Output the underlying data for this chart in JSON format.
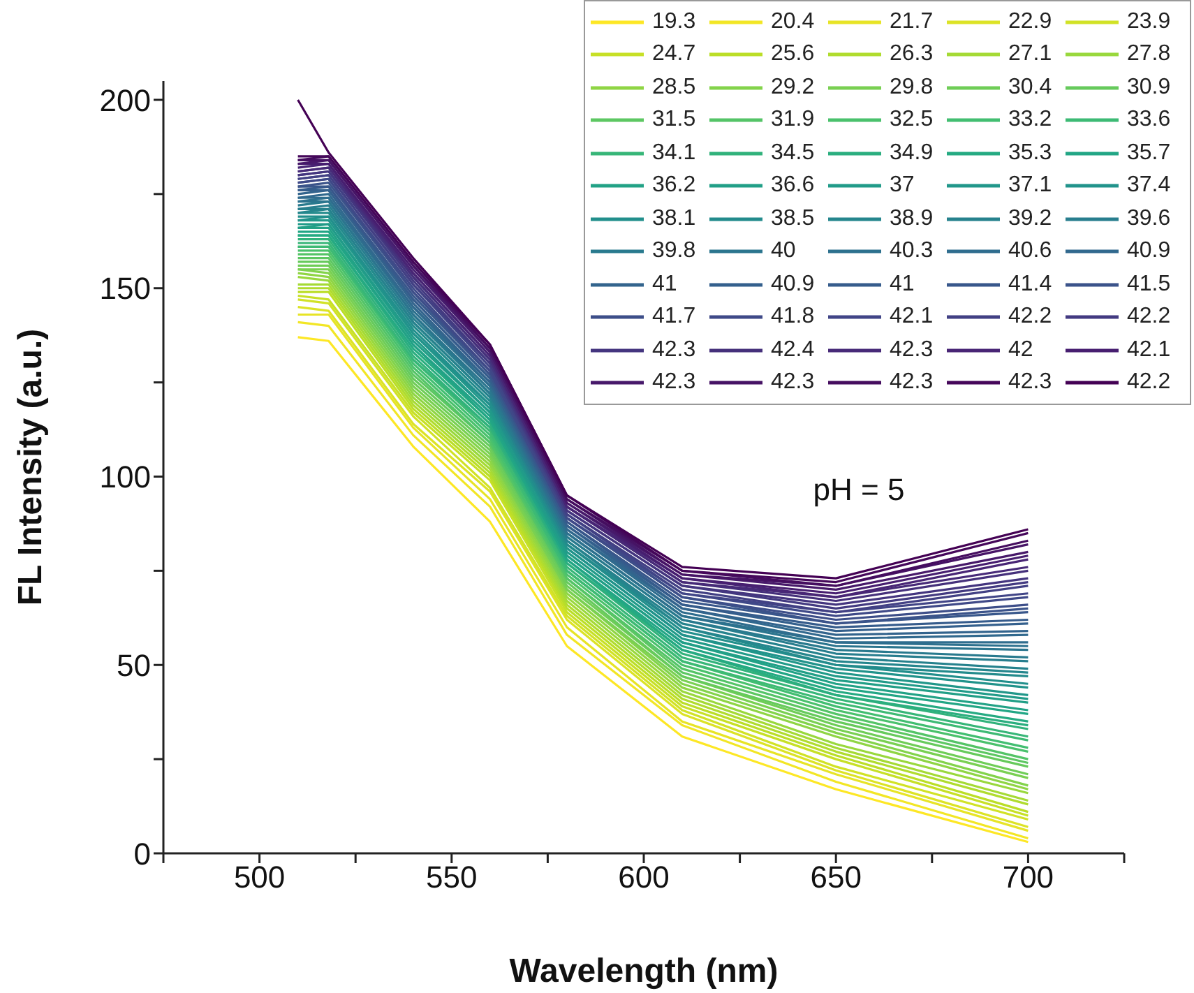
{
  "chart_data": {
    "type": "line",
    "xlabel": "Wavelength (nm)",
    "ylabel": "FL Intensity (a.u.)",
    "annotations": [
      "pH = 5"
    ],
    "x": [
      510,
      518,
      540,
      560,
      580,
      610,
      650,
      700
    ],
    "xlim": [
      475,
      725
    ],
    "xticks": [
      {
        "value": 475,
        "label": null
      },
      500,
      {
        "value": 525,
        "label": null
      },
      550,
      {
        "value": 575,
        "label": null
      },
      600,
      {
        "value": 625,
        "label": null
      },
      650,
      {
        "value": 675,
        "label": null
      },
      700,
      {
        "value": 725,
        "label": null
      }
    ],
    "ylim": [
      0,
      205
    ],
    "yticks": [
      0,
      {
        "value": 25,
        "label": null
      },
      50,
      {
        "value": 75,
        "label": null
      },
      100,
      {
        "value": 125,
        "label": null
      },
      150,
      {
        "value": 175,
        "label": null
      },
      200
    ],
    "legend": "top right",
    "marker": "none",
    "line_style": "solid",
    "series": [
      {
        "name": "19.3",
        "color": "#fde725",
        "values": [
          137,
          136,
          108,
          88,
          55,
          31,
          17,
          3
        ]
      },
      {
        "name": "20.4",
        "color": "#f2e625",
        "values": [
          141,
          140,
          111,
          92,
          58,
          34,
          19,
          4
        ]
      },
      {
        "name": "21.7",
        "color": "#e7e426",
        "values": [
          143,
          143,
          113,
          94,
          60,
          35,
          21,
          6
        ]
      },
      {
        "name": "22.9",
        "color": "#dce326",
        "values": [
          145,
          144,
          114,
          96,
          62,
          37,
          22,
          7
        ]
      },
      {
        "name": "23.9",
        "color": "#d1e226",
        "values": [
          147,
          146,
          116,
          97,
          63,
          38,
          23,
          9
        ]
      },
      {
        "name": "24.7",
        "color": "#c7e026",
        "values": [
          148,
          147,
          117,
          99,
          64,
          39,
          25,
          10
        ]
      },
      {
        "name": "25.6",
        "color": "#bbde27",
        "values": [
          149,
          149,
          118,
          100,
          65,
          40,
          26,
          11
        ]
      },
      {
        "name": "26.3",
        "color": "#b0dc2e",
        "values": [
          150,
          150,
          119,
          101,
          66,
          41,
          27,
          13
        ]
      },
      {
        "name": "27.1",
        "color": "#a5da35",
        "values": [
          151,
          151,
          120,
          102,
          67,
          42,
          28,
          14
        ]
      },
      {
        "name": "27.8",
        "color": "#99d83d",
        "values": [
          153,
          152,
          121,
          103,
          68,
          43,
          29,
          16
        ]
      },
      {
        "name": "28.5",
        "color": "#8fd544",
        "values": [
          154,
          153,
          122,
          104,
          69,
          44,
          31,
          17
        ]
      },
      {
        "name": "29.2",
        "color": "#83d34b",
        "values": [
          155,
          154,
          123,
          105,
          70,
          45,
          32,
          18
        ]
      },
      {
        "name": "29.8",
        "color": "#79d052",
        "values": [
          155,
          155,
          124,
          106,
          70,
          46,
          33,
          20
        ]
      },
      {
        "name": "30.4",
        "color": "#6fcd57",
        "values": [
          156,
          156,
          125,
          107,
          71,
          47,
          34,
          21
        ]
      },
      {
        "name": "30.9",
        "color": "#66ca5c",
        "values": [
          157,
          157,
          126,
          108,
          72,
          47,
          35,
          23
        ]
      },
      {
        "name": "31.5",
        "color": "#5dc762",
        "values": [
          158,
          158,
          127,
          109,
          73,
          48,
          36,
          24
        ]
      },
      {
        "name": "31.9",
        "color": "#54c467",
        "values": [
          159,
          159,
          128,
          109,
          73,
          49,
          37,
          25
        ]
      },
      {
        "name": "32.5",
        "color": "#4ac16c",
        "values": [
          160,
          160,
          129,
          110,
          74,
          50,
          38,
          27
        ]
      },
      {
        "name": "33.2",
        "color": "#42be71",
        "values": [
          161,
          161,
          130,
          111,
          75,
          51,
          39,
          28
        ]
      },
      {
        "name": "33.6",
        "color": "#3dba74",
        "values": [
          161,
          161,
          131,
          112,
          75,
          51,
          40,
          30
        ]
      },
      {
        "name": "34.1",
        "color": "#37b678",
        "values": [
          162,
          162,
          131,
          113,
          76,
          52,
          41,
          31
        ]
      },
      {
        "name": "34.5",
        "color": "#31b27b",
        "values": [
          163,
          163,
          132,
          113,
          77,
          53,
          42,
          33
        ]
      },
      {
        "name": "34.9",
        "color": "#2bae7f",
        "values": [
          164,
          164,
          133,
          114,
          77,
          54,
          42,
          34
        ]
      },
      {
        "name": "35.3",
        "color": "#25aa82",
        "values": [
          164,
          164,
          134,
          115,
          78,
          54,
          43,
          35
        ]
      },
      {
        "name": "35.7",
        "color": "#22a685",
        "values": [
          165,
          165,
          135,
          115,
          78,
          55,
          44,
          37
        ]
      },
      {
        "name": "36.2",
        "color": "#22a286",
        "values": [
          166,
          166,
          135,
          116,
          79,
          56,
          45,
          38
        ]
      },
      {
        "name": "36.6",
        "color": "#219f87",
        "values": [
          166,
          167,
          136,
          117,
          79,
          56,
          46,
          40
        ]
      },
      {
        "name": "37",
        "color": "#219b89",
        "values": [
          167,
          167,
          137,
          117,
          80,
          57,
          47,
          41
        ]
      },
      {
        "name": "37.1",
        "color": "#21978a",
        "values": [
          168,
          168,
          138,
          118,
          81,
          58,
          48,
          42
        ]
      },
      {
        "name": "37.4",
        "color": "#21938b",
        "values": [
          168,
          169,
          138,
          119,
          81,
          58,
          49,
          44
        ]
      },
      {
        "name": "38.1",
        "color": "#228f8c",
        "values": [
          169,
          169,
          139,
          119,
          82,
          59,
          50,
          45
        ]
      },
      {
        "name": "38.5",
        "color": "#238b8c",
        "values": [
          170,
          170,
          140,
          120,
          82,
          60,
          50,
          47
        ]
      },
      {
        "name": "38.9",
        "color": "#25868d",
        "values": [
          170,
          171,
          141,
          121,
          83,
          60,
          51,
          48
        ]
      },
      {
        "name": "39.2",
        "color": "#26828d",
        "values": [
          171,
          171,
          141,
          121,
          83,
          61,
          52,
          49
        ]
      },
      {
        "name": "39.6",
        "color": "#287e8e",
        "values": [
          171,
          172,
          142,
          122,
          84,
          62,
          53,
          51
        ]
      },
      {
        "name": "39.8",
        "color": "#297a8e",
        "values": [
          172,
          173,
          143,
          122,
          84,
          62,
          54,
          52
        ]
      },
      {
        "name": "40",
        "color": "#2b758e",
        "values": [
          173,
          173,
          143,
          123,
          85,
          63,
          55,
          54
        ]
      },
      {
        "name": "40.3",
        "color": "#2d718e",
        "values": [
          173,
          174,
          144,
          124,
          85,
          63,
          56,
          55
        ]
      },
      {
        "name": "40.6",
        "color": "#2f6d8e",
        "values": [
          174,
          174,
          145,
          124,
          86,
          64,
          56,
          56
        ]
      },
      {
        "name": "40.9",
        "color": "#31698e",
        "values": [
          174,
          175,
          145,
          125,
          86,
          65,
          57,
          58
        ]
      },
      {
        "name": "41",
        "color": "#33648d",
        "values": [
          175,
          176,
          146,
          125,
          87,
          65,
          58,
          59
        ]
      },
      {
        "name": "40.9",
        "color": "#34608d",
        "values": [
          176,
          176,
          147,
          126,
          87,
          66,
          59,
          61
        ]
      },
      {
        "name": "41",
        "color": "#365c8c",
        "values": [
          176,
          177,
          147,
          126,
          88,
          66,
          60,
          62
        ]
      },
      {
        "name": "41.4",
        "color": "#38578b",
        "values": [
          177,
          177,
          148,
          127,
          88,
          67,
          61,
          64
        ]
      },
      {
        "name": "41.5",
        "color": "#3b538a",
        "values": [
          177,
          178,
          149,
          127,
          89,
          68,
          61,
          65
        ]
      },
      {
        "name": "41.7",
        "color": "#3d4e89",
        "values": [
          178,
          179,
          149,
          128,
          89,
          68,
          62,
          66
        ]
      },
      {
        "name": "41.8",
        "color": "#3f4988",
        "values": [
          178,
          179,
          150,
          128,
          89,
          69,
          63,
          68
        ]
      },
      {
        "name": "42.1",
        "color": "#414587",
        "values": [
          179,
          180,
          151,
          129,
          90,
          69,
          64,
          69
        ]
      },
      {
        "name": "42.2",
        "color": "#424084",
        "values": [
          179,
          180,
          151,
          130,
          90,
          70,
          64,
          71
        ]
      },
      {
        "name": "42.2",
        "color": "#433a81",
        "values": [
          180,
          181,
          152,
          130,
          91,
          71,
          65,
          72
        ]
      },
      {
        "name": "42.3",
        "color": "#44357f",
        "values": [
          180,
          181,
          153,
          131,
          91,
          71,
          66,
          73
        ]
      },
      {
        "name": "42.4",
        "color": "#45307b",
        "values": [
          181,
          182,
          153,
          131,
          92,
          72,
          67,
          75
        ]
      },
      {
        "name": "42.3",
        "color": "#472a78",
        "values": [
          181,
          182,
          154,
          132,
          92,
          72,
          68,
          76
        ]
      },
      {
        "name": "42",
        "color": "#482575",
        "values": [
          182,
          183,
          154,
          132,
          92,
          73,
          68,
          78
        ]
      },
      {
        "name": "42.1",
        "color": "#471e70",
        "values": [
          183,
          183,
          155,
          133,
          93,
          73,
          69,
          79
        ]
      },
      {
        "name": "42.3",
        "color": "#47196a",
        "values": [
          183,
          184,
          156,
          133,
          93,
          74,
          70,
          80
        ]
      },
      {
        "name": "42.3",
        "color": "#461365",
        "values": [
          184,
          184,
          156,
          134,
          94,
          74,
          71,
          82
        ]
      },
      {
        "name": "42.3",
        "color": "#450d5f",
        "values": [
          184,
          185,
          157,
          134,
          94,
          75,
          71,
          83
        ]
      },
      {
        "name": "42.3",
        "color": "#45075a",
        "values": [
          185,
          185,
          157,
          135,
          95,
          75,
          72,
          85
        ]
      },
      {
        "name": "42.2",
        "color": "#440154",
        "values": [
          200,
          186,
          158,
          135,
          95,
          76,
          73,
          86
        ]
      }
    ]
  }
}
